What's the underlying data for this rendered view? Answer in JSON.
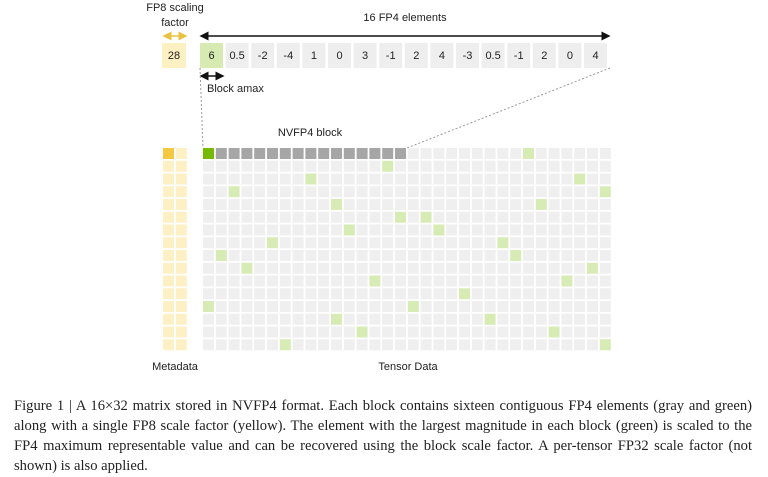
{
  "labels": {
    "fp8_scaling_factor": [
      "FP8 scaling",
      "factor"
    ],
    "fp4_elements": "16 FP4 elements",
    "block_amax": "Block amax",
    "nvfp4_block": "NVFP4 block",
    "metadata": "Metadata",
    "tensor_data": "Tensor Data"
  },
  "scale_factor": 28,
  "elements": [
    6,
    0.5,
    -2,
    -4,
    1,
    0,
    3,
    -1,
    2,
    4,
    -3,
    0.5,
    -1,
    2,
    0,
    4
  ],
  "caption": "Figure 1 | A 16×32 matrix stored in NVFP4 format. Each block contains sixteen contiguous FP4 elements (gray and green) along with a single FP8 scale factor (yellow). The element with the largest magnitude in each block (green) is scaled to the FP4 maximum representable value and can be recovered using the block scale factor. A per-tensor FP32 scale factor (not shown) is also applied."
}
